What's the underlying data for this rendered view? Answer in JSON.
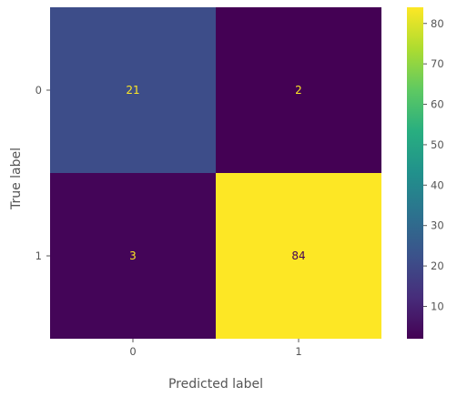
{
  "chart_data": {
    "type": "heatmap",
    "title": "",
    "xlabel": "Predicted label",
    "ylabel": "True label",
    "x_categories": [
      "0",
      "1"
    ],
    "y_categories": [
      "0",
      "1"
    ],
    "values": [
      [
        21,
        2
      ],
      [
        3,
        84
      ]
    ],
    "colormap": "viridis",
    "color_range": [
      2,
      84
    ],
    "colorbar_ticks": [
      10,
      20,
      30,
      40,
      50,
      60,
      70,
      80
    ],
    "text_colors": {
      "on_dark": "#fde725",
      "on_bright": "#440154"
    },
    "grid": false
  }
}
